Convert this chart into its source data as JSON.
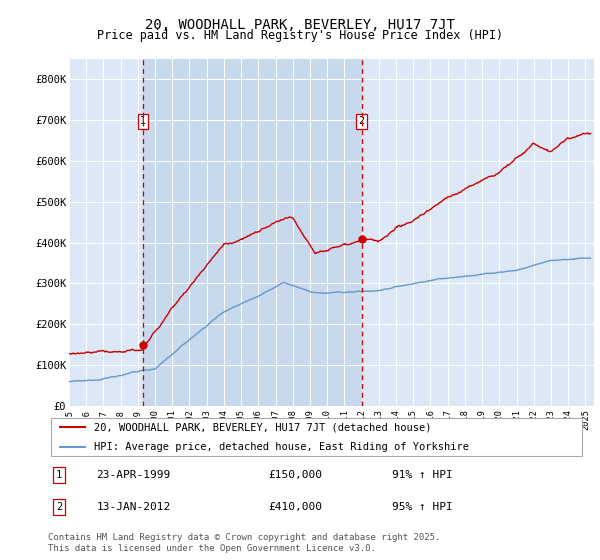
{
  "title": "20, WOODHALL PARK, BEVERLEY, HU17 7JT",
  "subtitle": "Price paid vs. HM Land Registry's House Price Index (HPI)",
  "background_color": "#ffffff",
  "plot_bg_color": "#dce8f5",
  "plot_bg_color2": "#c8d8ed",
  "ylim": [
    0,
    850000
  ],
  "xlim_start": 1995.0,
  "xlim_end": 2025.5,
  "yticks": [
    0,
    100000,
    200000,
    300000,
    400000,
    500000,
    600000,
    700000,
    800000
  ],
  "ytick_labels": [
    "£0",
    "£100K",
    "£200K",
    "£300K",
    "£400K",
    "£500K",
    "£600K",
    "£700K",
    "£800K"
  ],
  "xtick_years": [
    1995,
    1996,
    1997,
    1998,
    1999,
    2000,
    2001,
    2002,
    2003,
    2004,
    2005,
    2006,
    2007,
    2008,
    2009,
    2010,
    2011,
    2012,
    2013,
    2014,
    2015,
    2016,
    2017,
    2018,
    2019,
    2020,
    2021,
    2022,
    2023,
    2024,
    2025
  ],
  "red_line_color": "#cc0000",
  "blue_line_color": "#6699cc",
  "vline_color": "#cc0000",
  "sale1_year": 1999.3,
  "sale1_price": 150000,
  "sale2_year": 2012.0,
  "sale2_price": 410000,
  "marker1_label": "1",
  "marker2_label": "2",
  "legend_line1": "20, WOODHALL PARK, BEVERLEY, HU17 7JT (detached house)",
  "legend_line2": "HPI: Average price, detached house, East Riding of Yorkshire",
  "annotation1_num": "1",
  "annotation1_date": "23-APR-1999",
  "annotation1_price": "£150,000",
  "annotation1_hpi": "91% ↑ HPI",
  "annotation2_num": "2",
  "annotation2_date": "13-JAN-2012",
  "annotation2_price": "£410,000",
  "annotation2_hpi": "95% ↑ HPI",
  "footer": "Contains HM Land Registry data © Crown copyright and database right 2025.\nThis data is licensed under the Open Government Licence v3.0.",
  "title_fontsize": 10,
  "subtitle_fontsize": 8.5,
  "axis_fontsize": 7.5,
  "legend_fontsize": 7.5,
  "annotation_fontsize": 8,
  "footer_fontsize": 6.5
}
